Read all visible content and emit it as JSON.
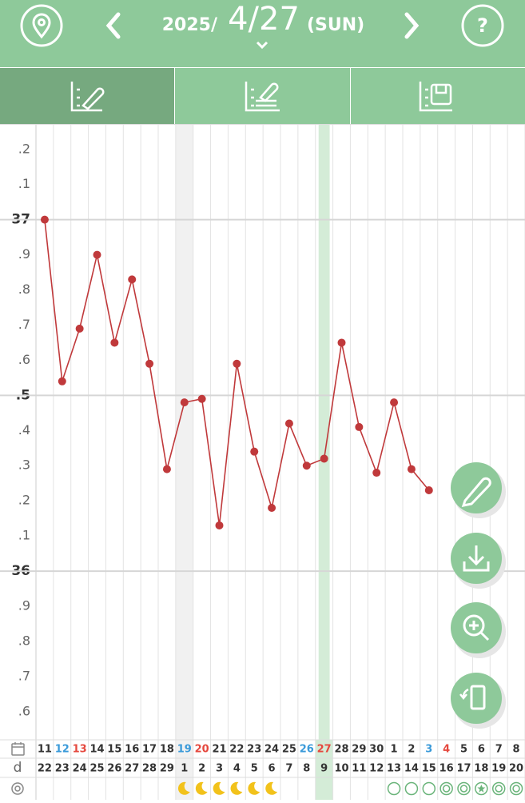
{
  "header": {
    "year": "2025/",
    "date": "4/27",
    "weekday": "(SUN)",
    "help": "?"
  },
  "chart_data": {
    "type": "line",
    "categories": [
      "11",
      "12",
      "13",
      "14",
      "15",
      "16",
      "17",
      "18",
      "19",
      "20",
      "21",
      "22",
      "23",
      "24",
      "25",
      "26",
      "27",
      "28",
      "29",
      "30",
      "1",
      "2",
      "3",
      "4",
      "5",
      "6",
      "7",
      "8"
    ],
    "category_colors": [
      "#333",
      "#3a9ad9",
      "#e5483e",
      "#333",
      "#333",
      "#333",
      "#333",
      "#333",
      "#3a9ad9",
      "#e5483e",
      "#333",
      "#333",
      "#333",
      "#333",
      "#333",
      "#3a9ad9",
      "#e5483e",
      "#333",
      "#333",
      "#333",
      "#333",
      "#333",
      "#3a9ad9",
      "#e5483e",
      "#333",
      "#333",
      "#333",
      "#333"
    ],
    "cycle_day_label": "d",
    "cycle_days": [
      "22",
      "23",
      "24",
      "25",
      "26",
      "27",
      "28",
      "29",
      "1",
      "2",
      "3",
      "4",
      "5",
      "6",
      "7",
      "8",
      "9",
      "10",
      "11",
      "12",
      "13",
      "14",
      "15",
      "16",
      "17",
      "18",
      "19",
      "20"
    ],
    "series": [
      {
        "color": "#c0393b",
        "values": [
          37.0,
          36.54,
          36.69,
          36.9,
          36.65,
          36.83,
          36.59,
          36.29,
          36.48,
          36.49,
          36.13,
          36.59,
          36.34,
          36.18,
          36.42,
          36.3,
          36.32,
          36.65,
          36.41,
          36.28,
          36.48,
          36.29,
          36.23,
          null,
          null,
          null,
          null,
          null
        ]
      }
    ],
    "ylim": [
      35.52,
      37.27
    ],
    "yticks": [
      {
        "value": 37.2,
        "label": ".2"
      },
      {
        "value": 37.1,
        "label": ".1"
      },
      37,
      {
        "value": 36.9,
        "label": ".9"
      },
      {
        "value": 36.8,
        "label": ".8"
      },
      {
        "value": 36.7,
        "label": ".7"
      },
      {
        "value": 36.6,
        "label": ".6"
      },
      {
        "value": 36.5,
        "label": ".5"
      },
      {
        "value": 36.4,
        "label": ".4"
      },
      {
        "value": 36.3,
        "label": ".3"
      },
      {
        "value": 36.2,
        "label": ".2"
      },
      {
        "value": 36.1,
        "label": ".1"
      },
      36,
      {
        "value": 35.9,
        "label": ".9"
      },
      {
        "value": 35.8,
        "label": ".8"
      },
      {
        "value": 35.7,
        "label": ".7"
      },
      {
        "value": 35.6,
        "label": ".6"
      }
    ],
    "grid": true
  }
}
